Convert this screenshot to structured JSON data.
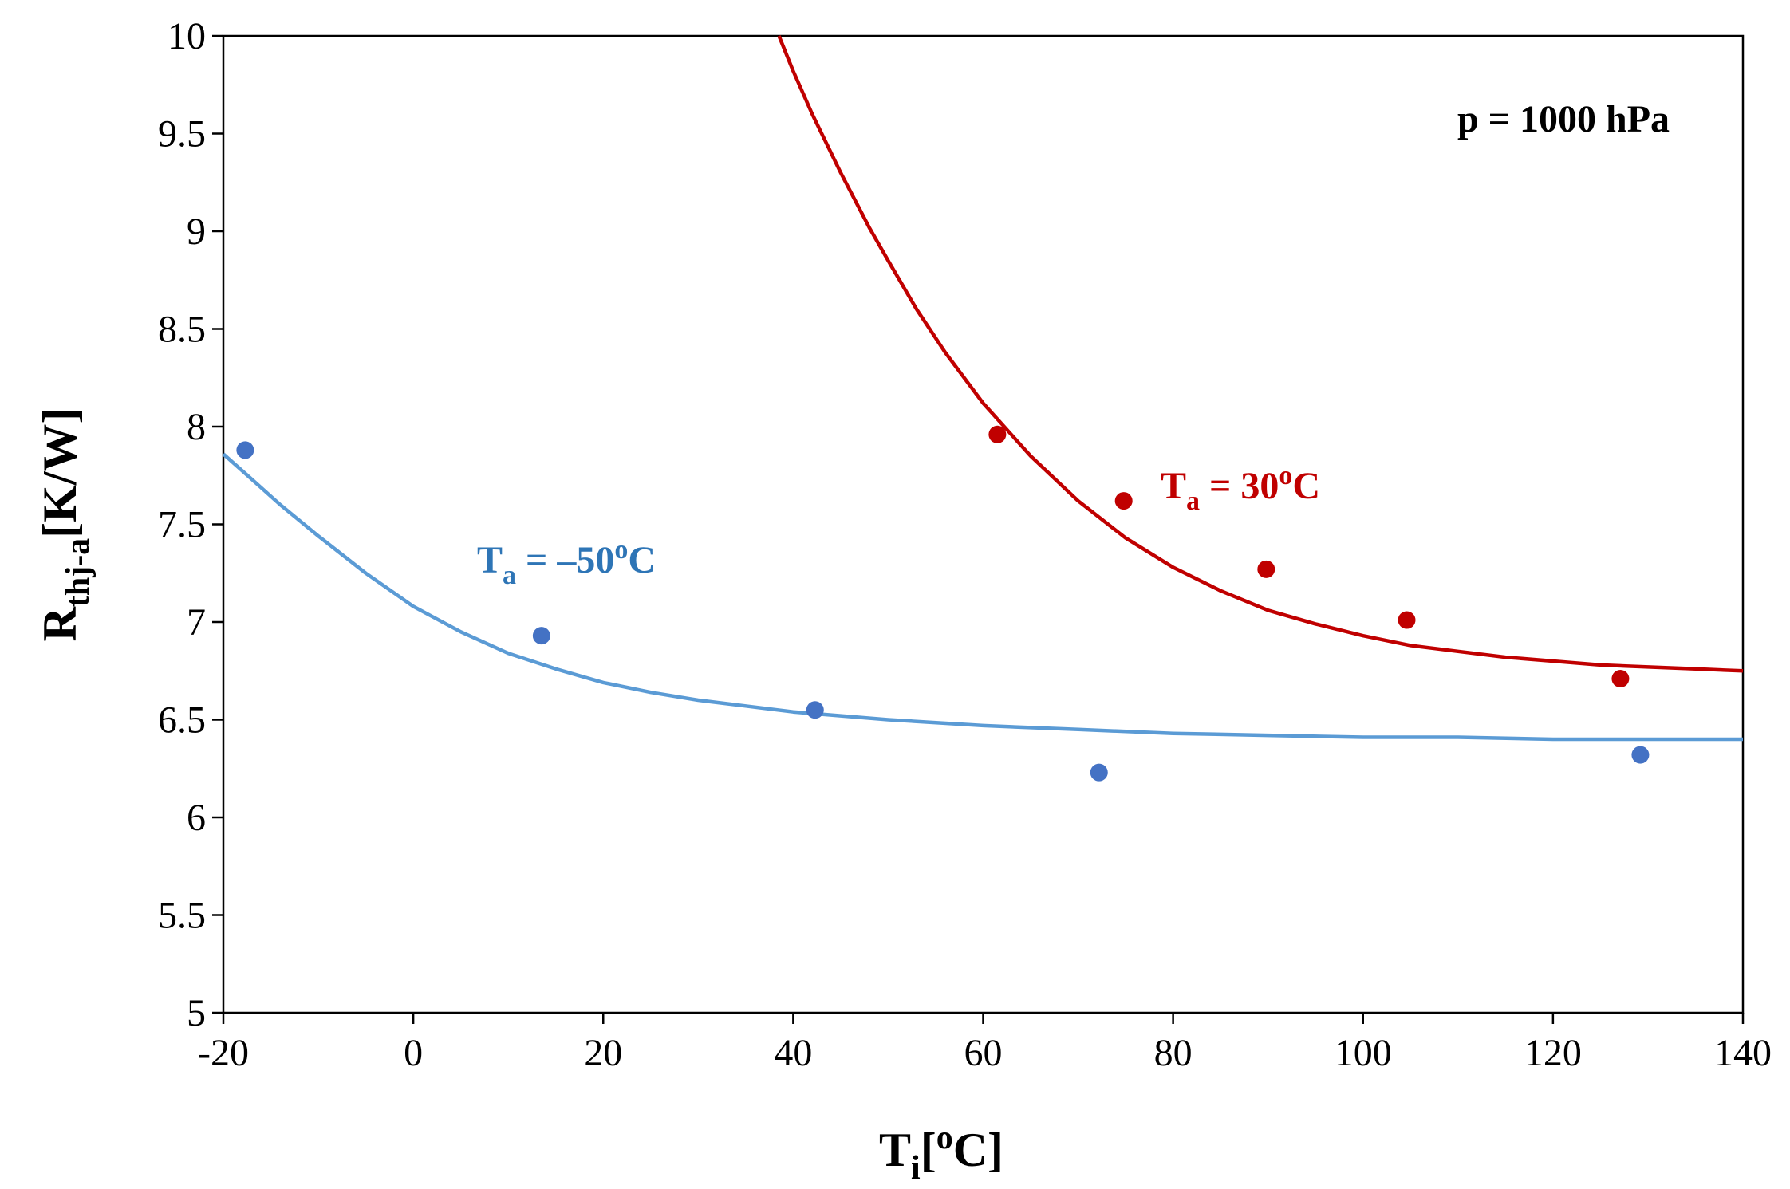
{
  "chart_data": {
    "type": "scatter",
    "title": "",
    "x_label": {
      "base": "T",
      "sub": "i",
      "open": "[",
      "sup": "o",
      "close": "C]"
    },
    "y_label": {
      "base": "R",
      "sub": "thj-a",
      "unit": "[K/W]"
    },
    "xlim": [
      -20,
      140
    ],
    "ylim": [
      5,
      10
    ],
    "x_ticks": [
      -20,
      0,
      20,
      40,
      60,
      80,
      100,
      120,
      140
    ],
    "y_ticks": [
      5,
      5.5,
      6,
      6.5,
      7,
      7.5,
      8,
      8.5,
      9,
      9.5,
      10
    ],
    "grid": false,
    "annotation": "p = 1000 hPa",
    "colors": {
      "red": "#c00000",
      "blue_line": "#5b9bd5",
      "blue_point": "#4472c4",
      "blue_text": "#2e75b6"
    },
    "series": [
      {
        "name": "Ta = 30oC",
        "label": {
          "base": "T",
          "sub": "a",
          "mid": " = 30",
          "sup": "o",
          "end": "C"
        },
        "points": [
          {
            "x": 61.5,
            "y": 7.96
          },
          {
            "x": 74.8,
            "y": 7.62
          },
          {
            "x": 89.8,
            "y": 7.27
          },
          {
            "x": 104.6,
            "y": 7.01
          },
          {
            "x": 127.1,
            "y": 6.71
          }
        ],
        "fit_curve": [
          {
            "x": 38.5,
            "y": 10.0
          },
          {
            "x": 40,
            "y": 9.82
          },
          {
            "x": 42,
            "y": 9.6
          },
          {
            "x": 45,
            "y": 9.3
          },
          {
            "x": 48,
            "y": 9.02
          },
          {
            "x": 50,
            "y": 8.85
          },
          {
            "x": 53,
            "y": 8.6
          },
          {
            "x": 56,
            "y": 8.38
          },
          {
            "x": 60,
            "y": 8.12
          },
          {
            "x": 65,
            "y": 7.85
          },
          {
            "x": 70,
            "y": 7.62
          },
          {
            "x": 75,
            "y": 7.43
          },
          {
            "x": 80,
            "y": 7.28
          },
          {
            "x": 85,
            "y": 7.16
          },
          {
            "x": 90,
            "y": 7.06
          },
          {
            "x": 95,
            "y": 6.99
          },
          {
            "x": 100,
            "y": 6.93
          },
          {
            "x": 105,
            "y": 6.88
          },
          {
            "x": 110,
            "y": 6.85
          },
          {
            "x": 115,
            "y": 6.82
          },
          {
            "x": 120,
            "y": 6.8
          },
          {
            "x": 125,
            "y": 6.78
          },
          {
            "x": 130,
            "y": 6.77
          },
          {
            "x": 135,
            "y": 6.76
          },
          {
            "x": 140,
            "y": 6.75
          }
        ]
      },
      {
        "name": "Ta = -50oC",
        "label": {
          "base": "T",
          "sub": "a",
          "mid": " = –50",
          "sup": "o",
          "end": "C"
        },
        "points": [
          {
            "x": -17.7,
            "y": 7.88
          },
          {
            "x": 13.5,
            "y": 6.93
          },
          {
            "x": 42.3,
            "y": 6.55
          },
          {
            "x": 72.2,
            "y": 6.23
          },
          {
            "x": 129.2,
            "y": 6.32
          }
        ],
        "fit_curve": [
          {
            "x": -20,
            "y": 7.86
          },
          {
            "x": -17,
            "y": 7.73
          },
          {
            "x": -14,
            "y": 7.6
          },
          {
            "x": -10,
            "y": 7.44
          },
          {
            "x": -5,
            "y": 7.25
          },
          {
            "x": 0,
            "y": 7.08
          },
          {
            "x": 5,
            "y": 6.95
          },
          {
            "x": 10,
            "y": 6.84
          },
          {
            "x": 15,
            "y": 6.76
          },
          {
            "x": 20,
            "y": 6.69
          },
          {
            "x": 25,
            "y": 6.64
          },
          {
            "x": 30,
            "y": 6.6
          },
          {
            "x": 35,
            "y": 6.57
          },
          {
            "x": 40,
            "y": 6.54
          },
          {
            "x": 50,
            "y": 6.5
          },
          {
            "x": 60,
            "y": 6.47
          },
          {
            "x": 70,
            "y": 6.45
          },
          {
            "x": 80,
            "y": 6.43
          },
          {
            "x": 90,
            "y": 6.42
          },
          {
            "x": 100,
            "y": 6.41
          },
          {
            "x": 110,
            "y": 6.41
          },
          {
            "x": 120,
            "y": 6.4
          },
          {
            "x": 130,
            "y": 6.4
          },
          {
            "x": 140,
            "y": 6.4
          }
        ]
      }
    ]
  }
}
